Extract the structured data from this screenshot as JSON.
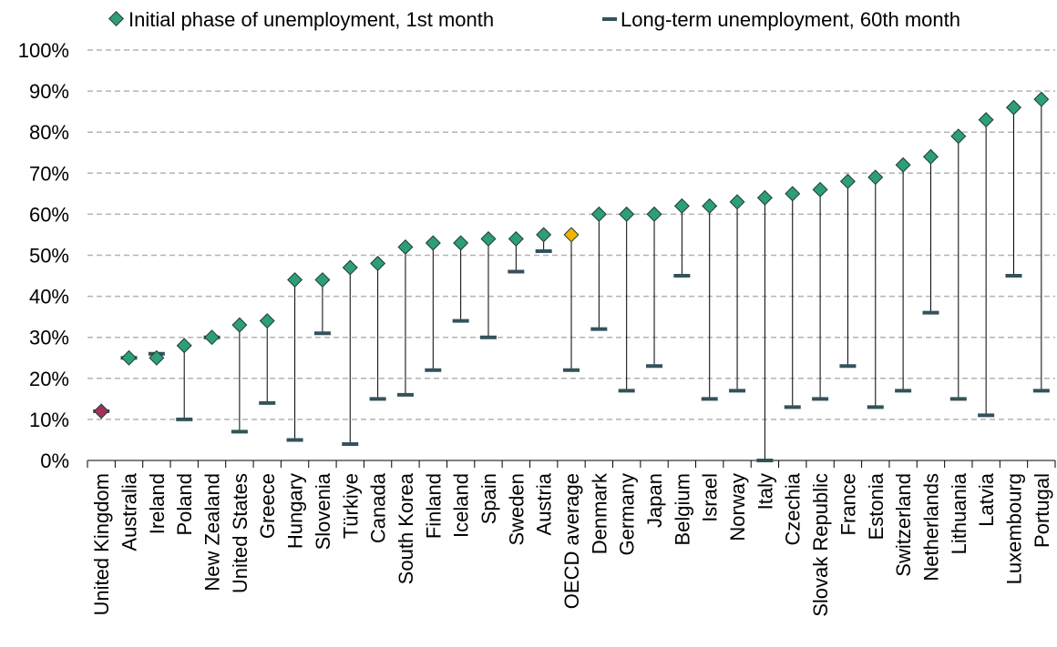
{
  "chart_data": {
    "type": "line",
    "title": "",
    "xlabel": "",
    "ylabel": "",
    "ylim": [
      0,
      100
    ],
    "y_ticks": [
      "0%",
      "10%",
      "20%",
      "30%",
      "40%",
      "50%",
      "60%",
      "70%",
      "80%",
      "90%",
      "100%"
    ],
    "grid": "horizontal dashed",
    "legend_position": "top",
    "categories": [
      "United Kingdom",
      "Australia",
      "Ireland",
      "Poland",
      "New Zealand",
      "United States",
      "Greece",
      "Hungary",
      "Slovenia",
      "Türkiye",
      "Canada",
      "South Korea",
      "Finland",
      "Iceland",
      "Spain",
      "Sweden",
      "Austria",
      "OECD average",
      "Denmark",
      "Germany",
      "Japan",
      "Belgium",
      "Israel",
      "Norway",
      "Italy",
      "Czechia",
      "Slovak Republic",
      "France",
      "Estonia",
      "Switzerland",
      "Netherlands",
      "Lithuania",
      "Latvia",
      "Luxembourg",
      "Portugal"
    ],
    "series": [
      {
        "name": "Initial phase of unemployment, 1st month",
        "marker": "diamond",
        "values": [
          12,
          25,
          25,
          28,
          30,
          33,
          34,
          44,
          44,
          47,
          48,
          52,
          53,
          53,
          54,
          54,
          55,
          55,
          60,
          60,
          60,
          62,
          62,
          63,
          64,
          65,
          66,
          68,
          69,
          72,
          74,
          79,
          83,
          86,
          88
        ]
      },
      {
        "name": "Long-term unemployment, 60th month",
        "marker": "dash",
        "values": [
          12,
          25,
          26,
          10,
          30,
          7,
          14,
          5,
          31,
          4,
          15,
          16,
          22,
          34,
          30,
          46,
          51,
          22,
          32,
          17,
          23,
          45,
          15,
          17,
          0,
          13,
          15,
          23,
          13,
          17,
          36,
          15,
          11,
          45,
          17
        ]
      }
    ],
    "highlights": {
      "United Kingdom": "#a0325a",
      "OECD average": "#f2b200"
    },
    "colors": {
      "diamond_fill": "#2e9e76",
      "diamond_stroke": "#1f3a36",
      "dash": "#34525a",
      "connector": "#000000",
      "grid": "#b3b3b3"
    }
  }
}
